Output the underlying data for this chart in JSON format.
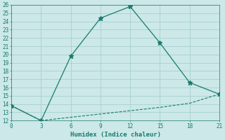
{
  "xlabel": "Humidex (Indice chaleur)",
  "line1_x": [
    0,
    3,
    6,
    9,
    12,
    15,
    18,
    21
  ],
  "line1_y": [
    13.8,
    12.0,
    19.8,
    24.4,
    25.8,
    21.4,
    16.6,
    15.2
  ],
  "line2_x": [
    0,
    3,
    6,
    9,
    12,
    15,
    18,
    21
  ],
  "line2_y": [
    13.8,
    12.0,
    12.4,
    12.8,
    13.2,
    13.6,
    14.1,
    15.2
  ],
  "line_color": "#1a7a6e",
  "bg_color": "#cce8e8",
  "grid_color": "#a8d0d0",
  "xlim": [
    0,
    21
  ],
  "ylim": [
    12,
    26
  ],
  "xticks": [
    0,
    3,
    6,
    9,
    12,
    15,
    18,
    21
  ],
  "yticks": [
    12,
    13,
    14,
    15,
    16,
    17,
    18,
    19,
    20,
    21,
    22,
    23,
    24,
    25,
    26
  ]
}
